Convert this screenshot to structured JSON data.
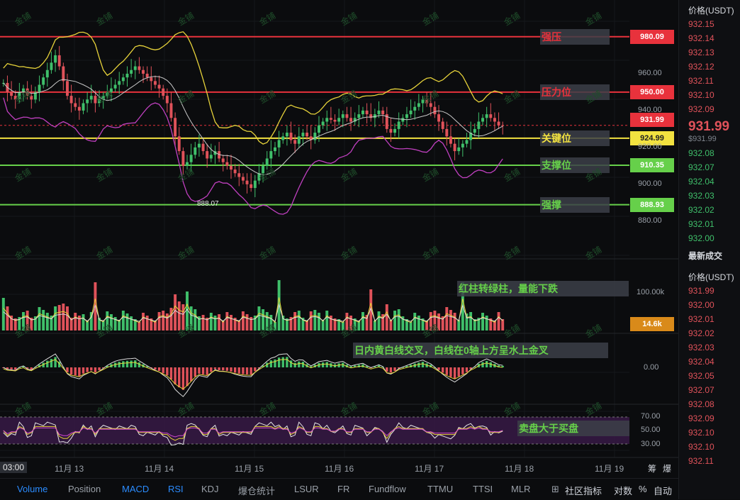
{
  "price_axis": {
    "ticks": [
      "960.00",
      "940.00",
      "920.00",
      "900.00",
      "880.00"
    ],
    "levels": [
      {
        "name": "强压",
        "value": "980.09",
        "color": "#e8323c",
        "tag_color": "#e8323c",
        "label_color": "#e8323c",
        "y_val": 980.09
      },
      {
        "name": "压力位",
        "value": "950.00",
        "color": "#e8323c",
        "tag_color": "#e8323c",
        "label_color": "#e8323c",
        "y_val": 950.0
      },
      {
        "name": "关键位",
        "value": "924.99",
        "color": "#f2e240",
        "tag_color": "#f2e240",
        "label_color": "#f2e240",
        "y_val": 924.99
      },
      {
        "name": "支撑位",
        "value": "910.35",
        "color": "#66d04a",
        "tag_color": "#66d04a",
        "label_color": "#66d04a",
        "y_val": 910.35
      },
      {
        "name": "强撑",
        "value": "888.93",
        "color": "#66d04a",
        "tag_color": "#66d04a",
        "label_color": "#66d04a",
        "y_val": 888.93
      }
    ],
    "current_price_tag": "931.99",
    "low_marker": "888.07"
  },
  "annotations": {
    "volume": "红柱转绿柱，量能下跌",
    "macd": "日内黄白线交叉，白线在0轴上方呈水上金叉",
    "rsi": "卖盘大于买盘"
  },
  "volume_axis": {
    "tick": "100.00k",
    "current": "14.6k"
  },
  "macd_axis": {
    "tick": "0.00"
  },
  "rsi_axis": {
    "ticks": [
      "70.00",
      "50.00",
      "30.00"
    ]
  },
  "x_axis": {
    "time_label": "03:00",
    "dates": [
      "11月 13",
      "11月 14",
      "11月 15",
      "11月 16",
      "11月 17",
      "11月 18",
      "11月 19"
    ],
    "right_icons": [
      "筹",
      "爆"
    ]
  },
  "bottom_tabs": [
    "Volume",
    "Position",
    "MACD",
    "RSI",
    "KDJ",
    "爆仓统计",
    "LSUR",
    "FR",
    "Fundflow",
    "TTMU",
    "TTSI",
    "MLR"
  ],
  "bottom_right": {
    "community": "社区指标",
    "log": "对数",
    "percent": "%",
    "auto": "自动"
  },
  "right_panel": {
    "header": "价格(USDT)",
    "asks": [
      "932.15",
      "932.14",
      "932.13",
      "932.12",
      "932.11",
      "932.10",
      "932.09"
    ],
    "last_price": "931.99",
    "last_price_usd": "$931.99",
    "bids": [
      "932.08",
      "932.07",
      "932.04",
      "932.03",
      "932.02",
      "932.01",
      "932.00"
    ],
    "trades_title": "最新成交",
    "trades_header": "价格(USDT)",
    "trades": [
      {
        "p": "931.99",
        "c": "red"
      },
      {
        "p": "932.00",
        "c": "red"
      },
      {
        "p": "932.01",
        "c": "red"
      },
      {
        "p": "932.02",
        "c": "red"
      },
      {
        "p": "932.03",
        "c": "red"
      },
      {
        "p": "932.04",
        "c": "red"
      },
      {
        "p": "932.05",
        "c": "red"
      },
      {
        "p": "932.07",
        "c": "red"
      },
      {
        "p": "932.08",
        "c": "red"
      },
      {
        "p": "932.09",
        "c": "red"
      },
      {
        "p": "932.10",
        "c": "red"
      },
      {
        "p": "932.10",
        "c": "red"
      },
      {
        "p": "932.11",
        "c": "red"
      }
    ]
  },
  "watermark": "金铺",
  "chart_data": {
    "type": "candlestick",
    "price_range": [
      873,
      1000
    ],
    "close_series": [
      955,
      950,
      948,
      946,
      950,
      952,
      948,
      946,
      950,
      954,
      958,
      962,
      966,
      970,
      964,
      956,
      948,
      944,
      942,
      940,
      944,
      946,
      948,
      944,
      946,
      948,
      950,
      952,
      954,
      956,
      958,
      960,
      962,
      964,
      962,
      960,
      958,
      956,
      954,
      952,
      948,
      944,
      936,
      926,
      918,
      910,
      912,
      916,
      920,
      922,
      918,
      914,
      916,
      918,
      914,
      912,
      910,
      908,
      906,
      904,
      902,
      900,
      898,
      902,
      906,
      910,
      914,
      918,
      920,
      924,
      926,
      928,
      924,
      922,
      926,
      928,
      926,
      924,
      928,
      932,
      934,
      936,
      935,
      934,
      936,
      938,
      936,
      934,
      936,
      938,
      940,
      938,
      936,
      938,
      940,
      938,
      930,
      928,
      930,
      934,
      936,
      938,
      940,
      942,
      944,
      946,
      944,
      942,
      938,
      934,
      930,
      926,
      922,
      918,
      920,
      922,
      924,
      928,
      930,
      934,
      936,
      938,
      936,
      934,
      932,
      931.99
    ]
  }
}
